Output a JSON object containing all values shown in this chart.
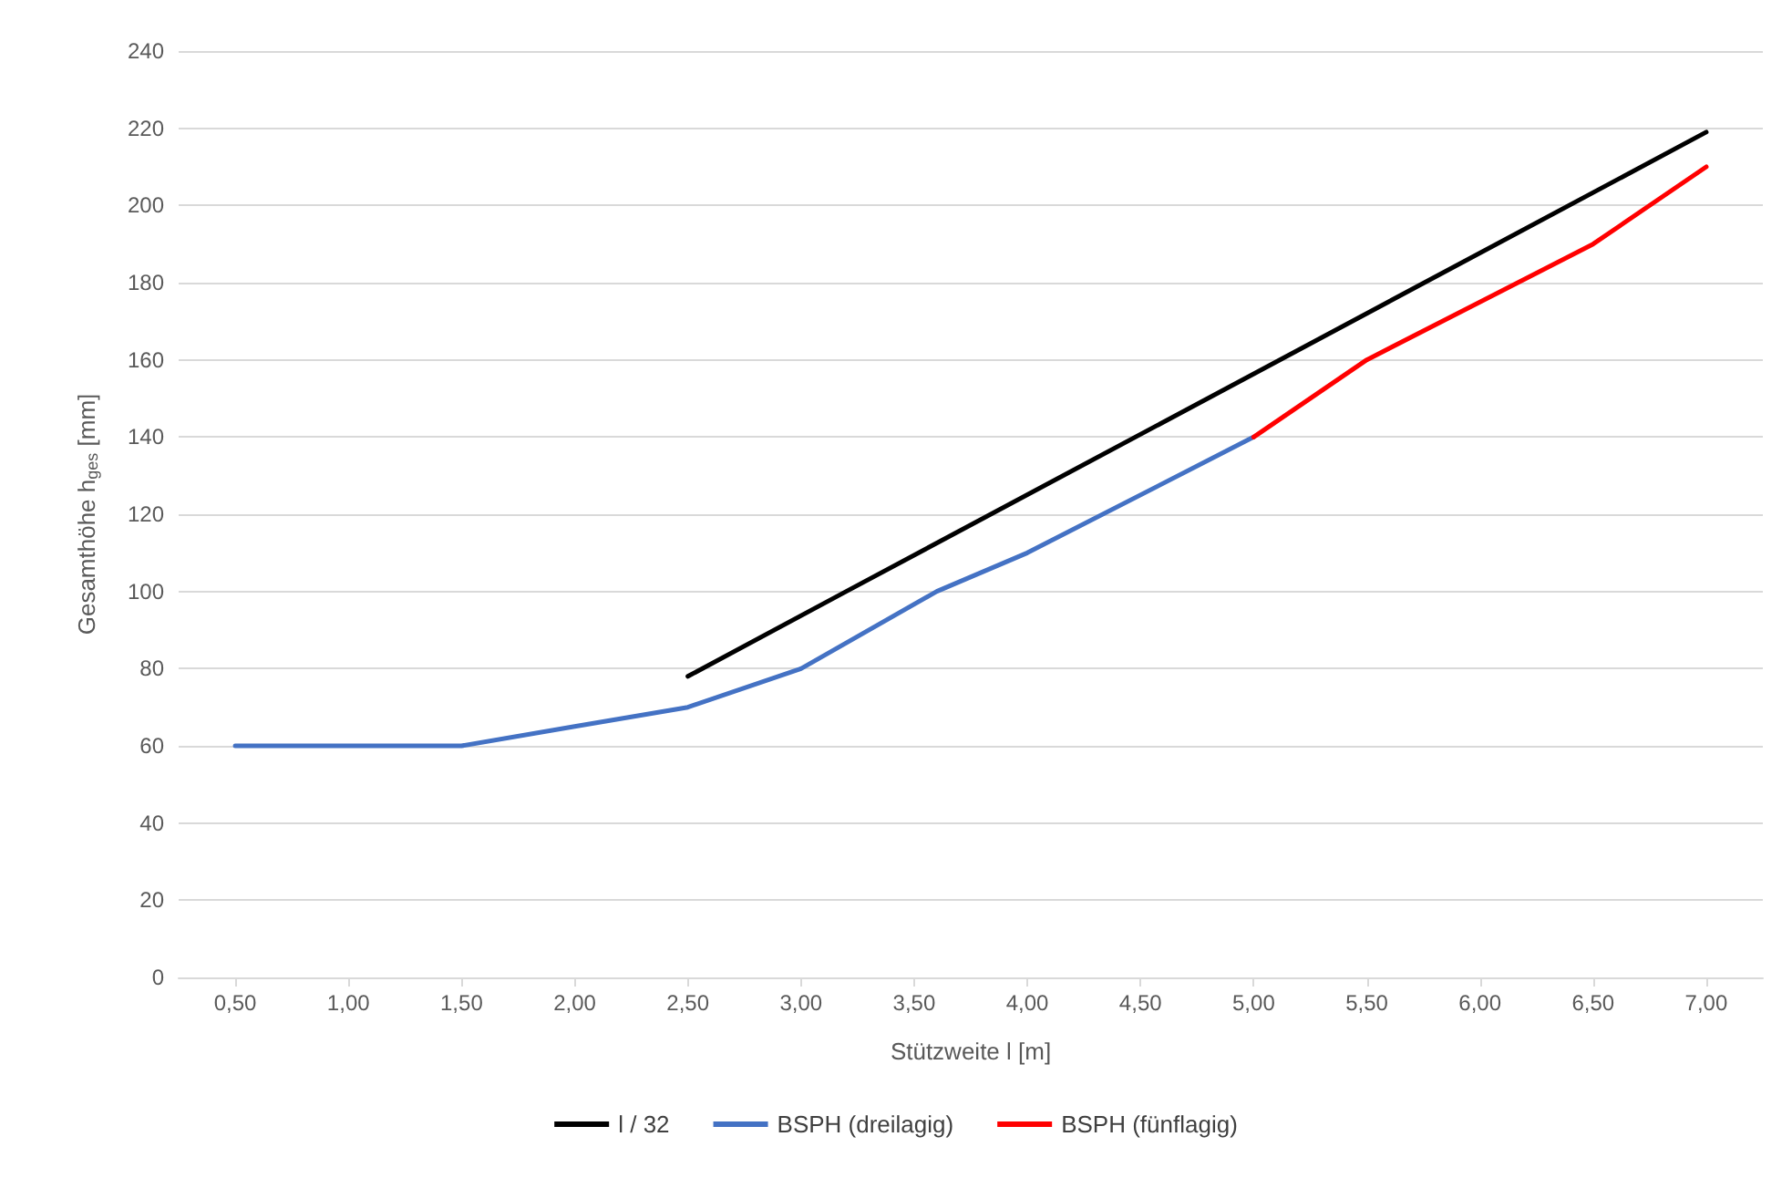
{
  "chart_data": {
    "type": "line",
    "xlabel": "Stützweite l [m]",
    "ylabel": "Gesamthöhe h$_{ges}$ [mm]",
    "xlim": [
      0.25,
      7.25
    ],
    "xticks": [
      {
        "value": 0.5,
        "label": "0,50"
      },
      {
        "value": 1,
        "label": "1,00"
      },
      {
        "value": 1.5,
        "label": "1,50"
      },
      {
        "value": 2,
        "label": "2,00"
      },
      {
        "value": 2.5,
        "label": "2,50"
      },
      {
        "value": 3,
        "label": "3,00"
      },
      {
        "value": 3.5,
        "label": "3,50"
      },
      {
        "value": 4,
        "label": "4,00"
      },
      {
        "value": 4.5,
        "label": "4,50"
      },
      {
        "value": 5,
        "label": "5,00"
      },
      {
        "value": 5.5,
        "label": "5,50"
      },
      {
        "value": 6,
        "label": "6,00"
      },
      {
        "value": 6.5,
        "label": "6,50"
      },
      {
        "value": 7,
        "label": "7,00"
      }
    ],
    "ylim": [
      0,
      240
    ],
    "yticks": [
      0,
      20,
      40,
      60,
      80,
      100,
      120,
      140,
      160,
      180,
      200,
      220,
      240
    ],
    "grid": "y",
    "legend": "bottom",
    "marker": "none",
    "line_style": "solid",
    "series": [
      {
        "name": "l / 32",
        "color": "#000000",
        "x": [
          2.5,
          3.2,
          7.0
        ],
        "values": [
          78,
          100,
          219
        ]
      },
      {
        "name": "BSPH (dreilagig)",
        "color": "#4472c4",
        "x": [
          0.5,
          1.5,
          2.0,
          2.5,
          3.0,
          3.6,
          4.0,
          5.0
        ],
        "values": [
          60,
          60,
          65,
          70,
          80,
          100,
          110,
          140
        ]
      },
      {
        "name": "BSPH (fünflagig)",
        "color": "#ff0000",
        "x": [
          5.0,
          5.5,
          6.0,
          6.5,
          7.0
        ],
        "values": [
          140,
          160,
          175,
          190,
          210
        ]
      }
    ]
  }
}
